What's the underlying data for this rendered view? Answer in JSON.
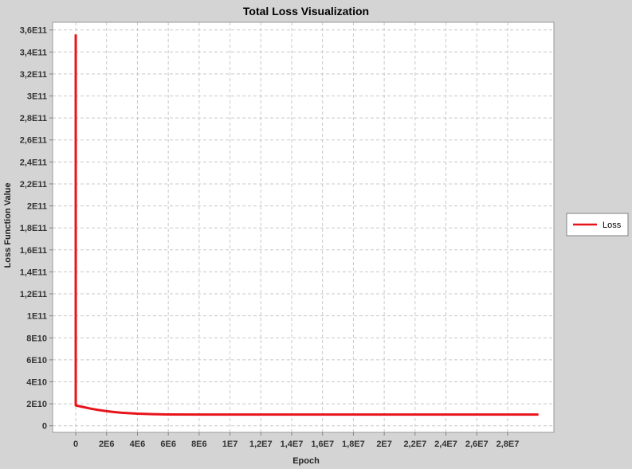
{
  "chart_data": {
    "type": "line",
    "title": "Total Loss Visualization",
    "xlabel": "Epoch",
    "ylabel": "Loss Function Value",
    "xlim": [
      -1500000,
      31000000
    ],
    "ylim": [
      -6000000000,
      367000000000
    ],
    "x_ticks": [
      {
        "value": 0,
        "label": "0"
      },
      {
        "value": 2000000,
        "label": "2E6"
      },
      {
        "value": 4000000,
        "label": "4E6"
      },
      {
        "value": 6000000,
        "label": "6E6"
      },
      {
        "value": 8000000,
        "label": "8E6"
      },
      {
        "value": 10000000,
        "label": "1E7"
      },
      {
        "value": 12000000,
        "label": "1,2E7"
      },
      {
        "value": 14000000,
        "label": "1,4E7"
      },
      {
        "value": 16000000,
        "label": "1,6E7"
      },
      {
        "value": 18000000,
        "label": "1,8E7"
      },
      {
        "value": 20000000,
        "label": "2E7"
      },
      {
        "value": 22000000,
        "label": "2,2E7"
      },
      {
        "value": 24000000,
        "label": "2,4E7"
      },
      {
        "value": 26000000,
        "label": "2,6E7"
      },
      {
        "value": 28000000,
        "label": "2,8E7"
      }
    ],
    "y_ticks": [
      {
        "value": 0,
        "label": "0"
      },
      {
        "value": 20000000000,
        "label": "2E10"
      },
      {
        "value": 40000000000,
        "label": "4E10"
      },
      {
        "value": 60000000000,
        "label": "6E10"
      },
      {
        "value": 80000000000,
        "label": "8E10"
      },
      {
        "value": 100000000000,
        "label": "1E11"
      },
      {
        "value": 120000000000,
        "label": "1,2E11"
      },
      {
        "value": 140000000000,
        "label": "1,4E11"
      },
      {
        "value": 160000000000,
        "label": "1,6E11"
      },
      {
        "value": 180000000000,
        "label": "1,8E11"
      },
      {
        "value": 200000000000,
        "label": "2E11"
      },
      {
        "value": 220000000000,
        "label": "2,2E11"
      },
      {
        "value": 240000000000,
        "label": "2,4E11"
      },
      {
        "value": 260000000000,
        "label": "2,6E11"
      },
      {
        "value": 280000000000,
        "label": "2,8E11"
      },
      {
        "value": 300000000000,
        "label": "3E11"
      },
      {
        "value": 320000000000,
        "label": "3,2E11"
      },
      {
        "value": 340000000000,
        "label": "3,4E11"
      },
      {
        "value": 360000000000,
        "label": "3,6E11"
      }
    ],
    "grid": true,
    "legend_position": "right",
    "series": [
      {
        "name": "Loss",
        "color": "#e8141b",
        "x": [
          0,
          0,
          500000,
          1000000,
          1500000,
          2000000,
          2500000,
          3000000,
          4000000,
          5000000,
          6000000,
          10000000,
          15000000,
          20000000,
          25000000,
          30000000
        ],
        "values": [
          356000000000,
          18500000000,
          17000000000,
          15500000000,
          14300000000,
          13300000000,
          12500000000,
          11800000000,
          11000000000,
          10600000000,
          10300000000,
          10200000000,
          10200000000,
          10200000000,
          10200000000,
          10200000000
        ]
      }
    ]
  }
}
